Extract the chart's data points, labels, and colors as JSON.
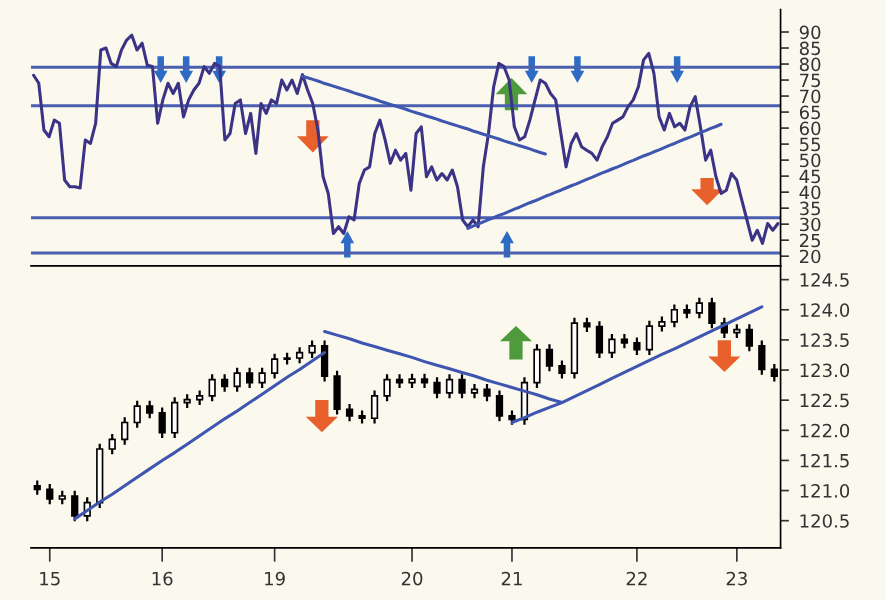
{
  "chart_data": [
    {
      "type": "line",
      "ylim": [
        17,
        97
      ],
      "yticks": [
        20,
        25,
        30,
        35,
        40,
        45,
        50,
        55,
        60,
        65,
        70,
        75,
        80,
        85,
        90
      ],
      "tick_labels": "y",
      "grid": false,
      "legend": false,
      "categories": [
        null,
        null,
        null,
        null,
        null,
        null,
        null,
        null,
        null,
        null,
        null,
        null,
        null,
        null,
        null,
        null,
        null,
        null,
        null,
        null,
        null,
        null,
        null,
        null,
        null,
        null,
        null,
        null,
        null,
        null,
        null,
        null,
        null,
        null,
        null,
        null,
        null,
        null,
        null,
        null,
        null,
        null,
        null,
        null,
        null,
        null,
        null,
        null,
        null,
        null,
        null,
        null,
        null,
        null,
        null,
        null,
        null,
        null,
        null,
        null,
        null,
        null,
        null,
        null,
        null,
        null,
        null,
        null,
        null,
        null,
        null,
        null,
        null,
        null,
        null,
        null,
        null,
        null,
        null,
        null,
        null,
        null,
        null,
        null,
        null,
        null,
        null,
        null,
        null,
        null,
        null,
        null,
        null,
        null,
        null,
        null,
        null,
        null,
        null,
        null,
        null,
        null,
        null,
        null,
        null,
        null,
        null,
        null,
        null,
        null,
        null,
        null,
        null,
        null,
        null,
        null,
        null,
        null,
        null,
        null,
        null,
        null,
        null,
        null,
        null,
        null,
        null,
        null,
        null,
        null,
        null,
        null,
        null,
        null,
        null,
        null,
        null,
        null,
        null,
        null,
        null,
        null,
        null,
        null,
        null
      ],
      "series": [
        {
          "color": "#3b3486",
          "values": [
            76.5,
            74.0,
            59.4,
            57.3,
            62.5,
            61.5,
            43.8,
            41.7,
            41.7,
            41.3,
            56.3,
            55.2,
            61.5,
            84.4,
            85.0,
            80.2,
            79.2,
            84.4,
            87.5,
            89.0,
            84.4,
            86.5,
            79.6,
            79.2,
            61.5,
            68.8,
            74.0,
            70.8,
            74.0,
            63.5,
            68.8,
            71.9,
            74.0,
            79.2,
            77.1,
            80.2,
            79.2,
            56.3,
            58.3,
            67.7,
            68.8,
            58.3,
            64.6,
            52.1,
            67.7,
            64.6,
            68.8,
            67.7,
            75.0,
            71.9,
            75.0,
            70.8,
            76.7,
            71.9,
            67.7,
            59.4,
            44.8,
            39.6,
            27.1,
            29.2,
            27.1,
            32.3,
            31.3,
            42.7,
            46.9,
            47.9,
            58.3,
            62.5,
            56.3,
            49.0,
            53.1,
            50.0,
            52.1,
            40.6,
            58.3,
            60.4,
            44.8,
            47.9,
            43.8,
            45.8,
            43.8,
            46.9,
            41.7,
            31.3,
            29.2,
            31.3,
            29.2,
            47.9,
            58.3,
            72.9,
            80.2,
            79.2,
            75.0,
            60.4,
            56.3,
            57.3,
            62.5,
            68.8,
            75.0,
            74.0,
            70.8,
            68.8,
            58.3,
            47.9,
            55.2,
            58.3,
            54.2,
            53.1,
            52.1,
            50.0,
            54.2,
            57.3,
            61.5,
            62.5,
            63.5,
            66.7,
            68.8,
            72.9,
            81.3,
            83.3,
            77.1,
            63.5,
            59.4,
            64.6,
            60.4,
            61.5,
            59.4,
            66.7,
            69.8,
            60.4,
            50.0,
            53.1,
            44.8,
            39.6,
            40.6,
            45.8,
            43.8,
            37.5,
            31.3,
            25.0,
            28.1,
            24.0,
            30.2,
            28.1,
            30.2
          ]
        },
        {
          "type": "line",
          "color": "#3f56b0",
          "values": [
            null,
            null,
            null,
            null,
            null,
            null,
            null,
            null,
            null,
            null,
            null,
            null,
            null,
            null,
            null,
            null,
            null,
            null,
            null,
            null,
            null,
            null,
            null,
            null,
            null,
            null,
            null,
            null,
            null,
            null,
            null,
            null,
            null,
            null,
            null,
            null,
            null,
            null,
            null,
            null,
            null,
            null,
            null,
            null,
            null,
            null,
            null,
            null,
            null,
            null,
            null,
            null,
            76.2,
            75.7,
            75.2,
            74.7,
            74.1,
            73.6,
            73.1,
            72.6,
            72.1,
            71.6,
            71.0,
            70.5,
            70.0,
            69.5,
            69.0,
            68.4,
            67.9,
            67.4,
            66.9,
            66.4,
            65.9,
            65.3,
            64.8,
            64.3,
            63.8,
            63.3,
            62.8,
            62.2,
            61.7,
            61.2,
            60.7,
            60.2,
            59.7,
            59.1,
            58.6,
            58.1,
            57.6,
            57.1,
            56.6,
            56.0,
            55.5,
            55.0,
            54.5,
            54.0,
            53.5,
            52.9,
            52.4,
            51.9,
            null,
            null,
            null,
            null,
            null,
            null,
            null,
            null,
            null,
            null,
            null,
            null,
            null,
            null,
            null,
            null,
            null,
            null,
            null,
            null,
            null,
            null,
            null,
            null,
            null,
            null,
            null,
            null,
            null,
            null,
            null,
            null,
            null,
            null,
            null,
            null,
            null,
            null,
            null,
            null,
            null,
            null,
            null,
            null,
            null
          ]
        },
        {
          "type": "line",
          "color": "#3f56b0",
          "values": [
            null,
            null,
            null,
            null,
            null,
            null,
            null,
            null,
            null,
            null,
            null,
            null,
            null,
            null,
            null,
            null,
            null,
            null,
            null,
            null,
            null,
            null,
            null,
            null,
            null,
            null,
            null,
            null,
            null,
            null,
            null,
            null,
            null,
            null,
            null,
            null,
            null,
            null,
            null,
            null,
            null,
            null,
            null,
            null,
            null,
            null,
            null,
            null,
            null,
            null,
            null,
            null,
            null,
            null,
            null,
            null,
            null,
            null,
            null,
            null,
            null,
            null,
            null,
            null,
            null,
            null,
            null,
            null,
            null,
            null,
            null,
            null,
            null,
            null,
            null,
            null,
            null,
            null,
            null,
            null,
            null,
            null,
            null,
            null,
            28.7,
            29.4,
            30.0,
            30.7,
            31.4,
            32.0,
            32.7,
            33.3,
            34.0,
            34.7,
            35.3,
            36.0,
            36.7,
            37.3,
            38.0,
            38.7,
            39.3,
            40.0,
            40.6,
            41.3,
            42.0,
            42.6,
            43.3,
            44.0,
            44.6,
            45.3,
            46.0,
            46.6,
            47.3,
            47.9,
            48.6,
            49.3,
            49.9,
            50.6,
            51.3,
            51.9,
            52.6,
            53.2,
            53.9,
            54.6,
            55.2,
            55.9,
            56.6,
            57.2,
            57.9,
            58.6,
            59.2,
            59.9,
            60.5,
            61.2,
            null,
            null,
            null,
            null,
            null,
            null,
            null,
            null,
            null,
            null,
            null
          ]
        }
      ],
      "ref_lines": [
        {
          "axis": "y",
          "value": 79,
          "color": "#4a5fb0"
        },
        {
          "axis": "y",
          "value": 67,
          "color": "#4a5fb0"
        },
        {
          "axis": "y",
          "value": 32,
          "color": "#4a5fb0"
        },
        {
          "axis": "y",
          "value": 21,
          "color": "#4a5fb0"
        }
      ]
    },
    {
      "type": "candlestick",
      "ylim": [
        120.05,
        124.73
      ],
      "yticks": [
        {
          "value": 120.5,
          "label": "120.5"
        },
        {
          "value": 121.0,
          "label": "121.0"
        },
        {
          "value": 121.5,
          "label": "121.5"
        },
        {
          "value": 122.0,
          "label": "122.0"
        },
        {
          "value": 122.5,
          "label": "122.5"
        },
        {
          "value": 123.0,
          "label": "123.0"
        },
        {
          "value": 123.5,
          "label": "123.5"
        },
        {
          "value": 124.0,
          "label": "124.0"
        },
        {
          "value": 124.5,
          "label": "124.5"
        }
      ],
      "grid": false,
      "legend": false,
      "categories": [
        null,
        "15",
        null,
        null,
        null,
        null,
        null,
        null,
        null,
        null,
        "16",
        null,
        null,
        null,
        null,
        null,
        null,
        null,
        null,
        "19",
        null,
        null,
        null,
        null,
        null,
        null,
        null,
        null,
        null,
        null,
        "20",
        null,
        null,
        null,
        null,
        null,
        null,
        null,
        "21",
        null,
        null,
        null,
        null,
        null,
        null,
        null,
        null,
        null,
        "22",
        null,
        null,
        null,
        null,
        null,
        null,
        null,
        "23",
        null,
        null,
        null
      ],
      "ohlc": [
        [
          121.08,
          121.15,
          120.95,
          121.02
        ],
        [
          121.02,
          121.09,
          120.79,
          120.86
        ],
        [
          120.86,
          120.98,
          120.79,
          120.91
        ],
        [
          120.91,
          120.98,
          120.51,
          120.58
        ],
        [
          120.58,
          120.87,
          120.51,
          120.8
        ],
        [
          120.8,
          121.76,
          120.73,
          121.69
        ],
        [
          121.69,
          121.92,
          121.62,
          121.85
        ],
        [
          121.85,
          122.2,
          121.78,
          122.13
        ],
        [
          122.13,
          122.47,
          122.06,
          122.4
        ],
        [
          122.4,
          122.47,
          122.22,
          122.29
        ],
        [
          122.29,
          122.36,
          121.89,
          121.96
        ],
        [
          121.96,
          122.53,
          121.89,
          122.46
        ],
        [
          122.46,
          122.58,
          122.39,
          122.51
        ],
        [
          122.51,
          122.64,
          122.44,
          122.57
        ],
        [
          122.57,
          122.91,
          122.5,
          122.84
        ],
        [
          122.84,
          122.91,
          122.66,
          122.73
        ],
        [
          122.73,
          123.02,
          122.66,
          122.95
        ],
        [
          122.95,
          123.02,
          122.72,
          122.79
        ],
        [
          122.79,
          123.02,
          122.72,
          122.95
        ],
        [
          122.95,
          123.25,
          122.88,
          123.18
        ],
        [
          123.18,
          123.27,
          123.11,
          123.2
        ],
        [
          123.2,
          123.36,
          123.13,
          123.29
        ],
        [
          123.29,
          123.47,
          123.22,
          123.4
        ],
        [
          123.4,
          123.47,
          122.83,
          122.9
        ],
        [
          122.9,
          122.97,
          122.28,
          122.35
        ],
        [
          122.35,
          122.42,
          122.17,
          122.24
        ],
        [
          122.24,
          122.31,
          122.13,
          122.2
        ],
        [
          122.2,
          122.64,
          122.13,
          122.57
        ],
        [
          122.57,
          122.91,
          122.5,
          122.84
        ],
        [
          122.84,
          122.91,
          122.72,
          122.79
        ],
        [
          122.79,
          122.92,
          122.72,
          122.85
        ],
        [
          122.85,
          122.92,
          122.72,
          122.79
        ],
        [
          122.79,
          122.86,
          122.55,
          122.62
        ],
        [
          122.62,
          122.91,
          122.55,
          122.84
        ],
        [
          122.84,
          122.91,
          122.55,
          122.62
        ],
        [
          122.62,
          122.75,
          122.55,
          122.68
        ],
        [
          122.68,
          122.75,
          122.5,
          122.57
        ],
        [
          122.57,
          122.64,
          122.17,
          122.24
        ],
        [
          122.24,
          122.31,
          122.11,
          122.18
        ],
        [
          122.18,
          122.86,
          122.11,
          122.79
        ],
        [
          122.79,
          123.41,
          122.72,
          123.34
        ],
        [
          123.34,
          123.41,
          123.0,
          123.07
        ],
        [
          123.07,
          123.14,
          122.88,
          122.95
        ],
        [
          122.95,
          123.85,
          122.88,
          123.78
        ],
        [
          123.78,
          123.85,
          123.65,
          123.72
        ],
        [
          123.72,
          123.79,
          123.22,
          123.29
        ],
        [
          123.29,
          123.58,
          123.22,
          123.51
        ],
        [
          123.51,
          123.58,
          123.38,
          123.45
        ],
        [
          123.45,
          123.52,
          123.27,
          123.34
        ],
        [
          123.34,
          123.8,
          123.27,
          123.73
        ],
        [
          123.73,
          123.87,
          123.66,
          123.8
        ],
        [
          123.8,
          124.07,
          123.73,
          124.0
        ],
        [
          124.0,
          124.07,
          123.88,
          123.95
        ],
        [
          123.95,
          124.18,
          123.88,
          124.11
        ],
        [
          124.11,
          124.18,
          123.71,
          123.78
        ],
        [
          123.78,
          123.85,
          123.55,
          123.62
        ],
        [
          123.62,
          123.74,
          123.55,
          123.67
        ],
        [
          123.67,
          123.74,
          123.33,
          123.4
        ],
        [
          123.4,
          123.47,
          122.94,
          123.01
        ],
        [
          123.01,
          123.08,
          122.83,
          122.9
        ]
      ],
      "series": [
        {
          "type": "line",
          "color": "#3f56b0",
          "values": [
            null,
            null,
            null,
            120.53,
            120.67,
            120.81,
            120.94,
            121.08,
            121.22,
            121.36,
            121.5,
            121.63,
            121.77,
            121.91,
            122.05,
            122.19,
            122.32,
            122.46,
            122.6,
            122.74,
            122.88,
            123.01,
            123.15,
            123.29,
            null,
            null,
            null,
            null,
            null,
            null,
            null,
            null,
            null,
            null,
            null,
            null,
            null,
            null,
            null,
            null,
            null,
            null,
            null,
            null,
            null,
            null,
            null,
            null,
            null,
            null,
            null,
            null,
            null,
            null,
            null,
            null,
            null,
            null,
            null,
            null
          ]
        },
        {
          "type": "line",
          "color": "#3f56b0",
          "values": [
            null,
            null,
            null,
            null,
            null,
            null,
            null,
            null,
            null,
            null,
            null,
            null,
            null,
            null,
            null,
            null,
            null,
            null,
            null,
            null,
            null,
            null,
            null,
            123.64,
            123.58,
            123.52,
            123.45,
            123.39,
            123.33,
            123.27,
            123.21,
            123.14,
            123.08,
            123.02,
            122.96,
            122.9,
            122.83,
            122.77,
            122.71,
            122.65,
            122.59,
            122.52,
            122.46,
            null,
            null,
            null,
            null,
            null,
            null,
            null,
            null,
            null,
            null,
            null,
            null,
            null,
            null,
            null,
            null,
            null
          ]
        },
        {
          "type": "line",
          "color": "#3f56b0",
          "values": [
            null,
            null,
            null,
            null,
            null,
            null,
            null,
            null,
            null,
            null,
            null,
            null,
            null,
            null,
            null,
            null,
            null,
            null,
            null,
            null,
            null,
            null,
            null,
            null,
            null,
            null,
            null,
            null,
            null,
            null,
            null,
            null,
            null,
            null,
            null,
            null,
            null,
            null,
            122.13,
            122.21,
            122.3,
            122.38,
            122.46,
            122.56,
            122.66,
            122.76,
            122.86,
            122.96,
            123.06,
            123.16,
            123.26,
            123.35,
            123.45,
            123.55,
            123.65,
            123.75,
            123.85,
            123.95,
            124.05,
            null
          ]
        }
      ]
    }
  ]
}
